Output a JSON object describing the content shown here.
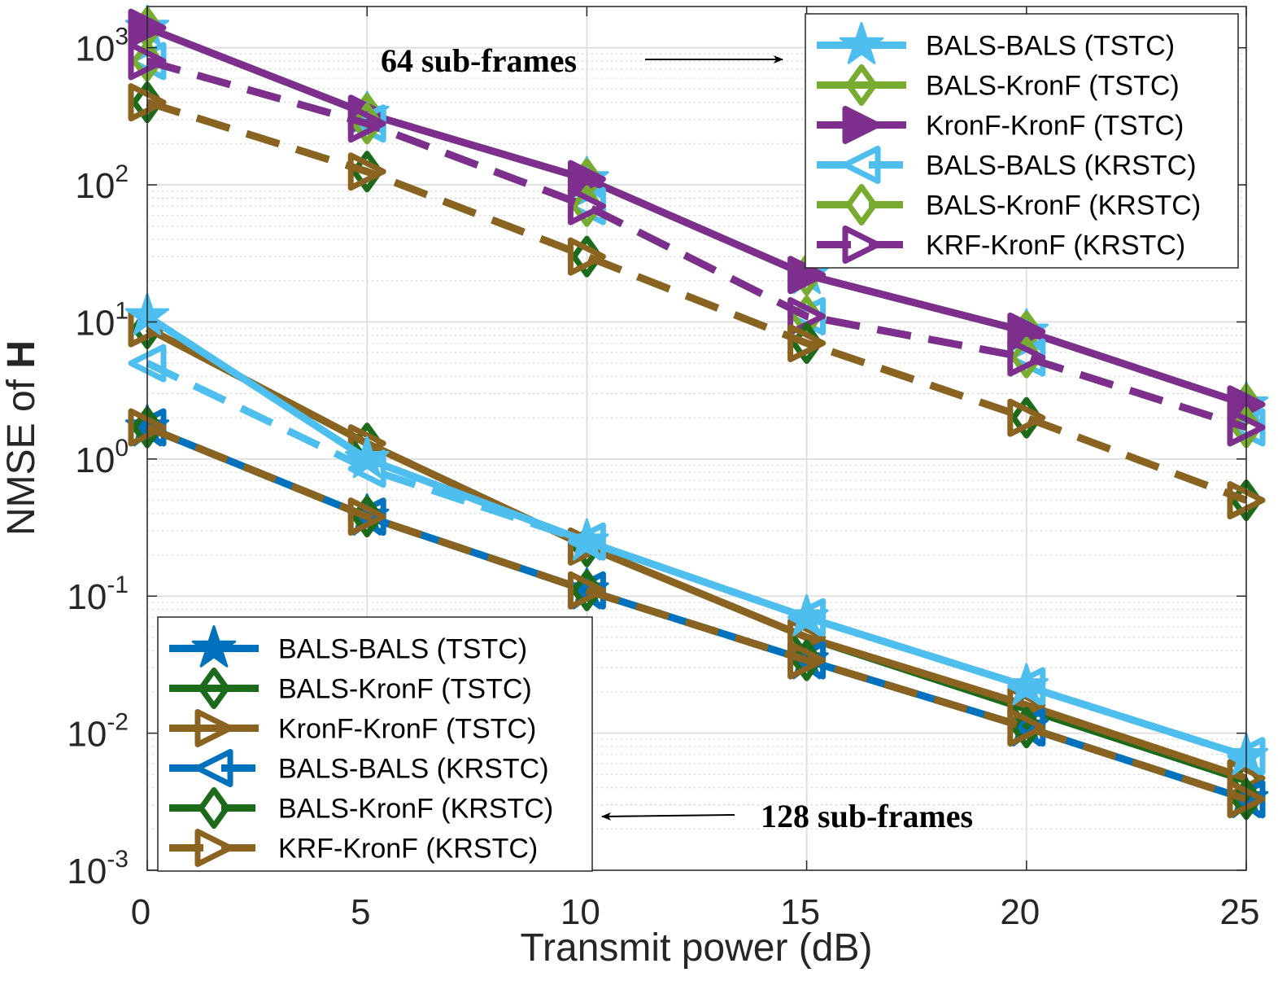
{
  "chart_data": {
    "type": "line",
    "xlabel": "Transmit power (dB)",
    "ylabel_text": "NMSE of ",
    "ylabel_bold": "H",
    "x": [
      0,
      5,
      10,
      15,
      20,
      25
    ],
    "xlim": [
      0,
      25
    ],
    "x_ticks": [
      "0",
      "5",
      "10",
      "15",
      "20",
      "25"
    ],
    "y_scale": "log",
    "ylim": [
      0.001,
      2000
    ],
    "y_ticks": [
      {
        "base": "10",
        "exp": "-3",
        "value": 0.001
      },
      {
        "base": "10",
        "exp": "-2",
        "value": 0.01
      },
      {
        "base": "10",
        "exp": "-1",
        "value": 0.1
      },
      {
        "base": "10",
        "exp": "0",
        "value": 1
      },
      {
        "base": "10",
        "exp": "1",
        "value": 10
      },
      {
        "base": "10",
        "exp": "2",
        "value": 100
      },
      {
        "base": "10",
        "exp": "3",
        "value": 1000
      }
    ],
    "grid": true,
    "minor_grid": true,
    "groups": [
      {
        "annotation": "64 sub-frames",
        "legend_position": "top-right",
        "series": [
          {
            "name": "BALS-BALS (TSTC)",
            "color": "#4DBEEE",
            "marker": "star",
            "line": "solid",
            "values": [
              1400,
              330,
              110,
              22,
              8.5,
              2.5
            ]
          },
          {
            "name": "BALS-KronF (TSTC)",
            "color": "#77AC30",
            "marker": "diamond",
            "line": "solid",
            "values": [
              1400,
              330,
              110,
              22,
              8.5,
              2.5
            ]
          },
          {
            "name": "KronF-KronF (TSTC)",
            "color": "#7E2F8E",
            "marker": "triangle-right-filled",
            "line": "solid",
            "values": [
              1400,
              330,
              110,
              22,
              8.5,
              2.5
            ]
          },
          {
            "name": "BALS-BALS (KRSTC)",
            "color": "#4DBEEE",
            "marker": "triangle-left",
            "line": "dashed",
            "values": [
              800,
              280,
              70,
              11,
              5.5,
              1.7
            ]
          },
          {
            "name": "BALS-KronF (KRSTC)",
            "color": "#77AC30",
            "marker": "diamond",
            "line": "dashed",
            "values": [
              800,
              280,
              70,
              11,
              5.5,
              1.7
            ]
          },
          {
            "name": "KRF-KronF (KRSTC)",
            "color": "#7E2F8E",
            "marker": "triangle-right",
            "line": "dashed",
            "values": [
              800,
              280,
              70,
              11,
              5.5,
              1.7
            ]
          },
          {
            "name": "",
            "color": "#1B6B1B",
            "marker": "diamond",
            "line": "dashed",
            "values": [
              400,
              125,
              30,
              7,
              2,
              0.5
            ]
          },
          {
            "name": "",
            "color": "#8B6320",
            "marker": "triangle-right",
            "line": "dashed",
            "values": [
              400,
              125,
              30,
              7,
              2,
              0.5
            ]
          }
        ]
      },
      {
        "annotation": "128 sub-frames",
        "legend_position": "bottom-left",
        "series": [
          {
            "name": "BALS-BALS (TSTC)",
            "color": "#0072BD",
            "marker": "star",
            "line": "solid",
            "values": [
              1.7,
              0.38,
              0.11,
              0.034,
              0.011,
              0.0033
            ]
          },
          {
            "name": "BALS-KronF (TSTC)",
            "color": "#1B6B1B",
            "marker": "diamond",
            "line": "solid",
            "values": [
              9,
              1.3,
              0.23,
              0.05,
              0.015,
              0.0045
            ]
          },
          {
            "name": "KronF-KronF (TSTC)",
            "color": "#8B6320",
            "marker": "triangle-right",
            "line": "solid",
            "values": [
              9,
              1.3,
              0.23,
              0.05,
              0.016,
              0.0047
            ]
          },
          {
            "name": "BALS-BALS (KRSTC)",
            "color": "#0072BD",
            "marker": "triangle-left",
            "line": "dashed",
            "values": [
              1.7,
              0.38,
              0.11,
              0.034,
              0.011,
              0.0033
            ]
          },
          {
            "name": "BALS-KronF (KRSTC)",
            "color": "#1B6B1B",
            "marker": "diamond",
            "line": "dashed",
            "values": [
              1.7,
              0.38,
              0.11,
              0.034,
              0.011,
              0.0033
            ]
          },
          {
            "name": "KRF-KronF (KRSTC)",
            "color": "#8B6320",
            "marker": "triangle-right",
            "line": "dashed",
            "values": [
              1.7,
              0.38,
              0.11,
              0.034,
              0.011,
              0.0033
            ]
          },
          {
            "name": "",
            "color": "#4DBEEE",
            "marker": "star",
            "line": "solid",
            "values": [
              11,
              1.0,
              0.25,
              0.07,
              0.022,
              0.0068
            ]
          },
          {
            "name": "",
            "color": "#4DBEEE",
            "marker": "triangle-left",
            "line": "dashed",
            "values": [
              5,
              0.85,
              0.25,
              0.07,
              0.022,
              0.0068
            ]
          }
        ]
      }
    ]
  }
}
